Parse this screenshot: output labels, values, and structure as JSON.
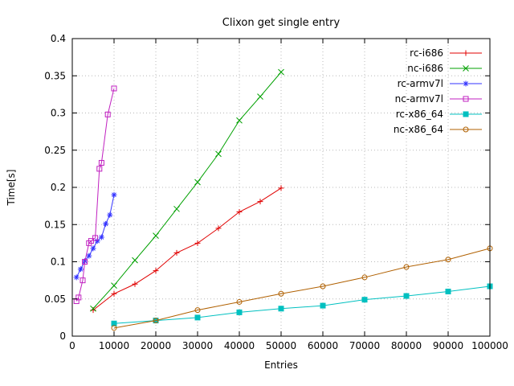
{
  "colors": {
    "background": "#ffffff",
    "grid": "#b8b8b8",
    "axis": "#000000"
  },
  "chart_data": {
    "type": "line",
    "title": "Clixon get single entry",
    "xlabel": "Entries",
    "ylabel": "Time[s]",
    "xlim": [
      0,
      100000
    ],
    "ylim": [
      0,
      0.4
    ],
    "grid": true,
    "legend_position": "top-right-inside",
    "xticks": [
      {
        "v": 0,
        "label": "0"
      },
      {
        "v": 10000,
        "label": "10000"
      },
      {
        "v": 20000,
        "label": "20000"
      },
      {
        "v": 30000,
        "label": "30000"
      },
      {
        "v": 40000,
        "label": "40000"
      },
      {
        "v": 50000,
        "label": "50000"
      },
      {
        "v": 60000,
        "label": "60000"
      },
      {
        "v": 70000,
        "label": "70000"
      },
      {
        "v": 80000,
        "label": "80000"
      },
      {
        "v": 90000,
        "label": "90000"
      },
      {
        "v": 100000,
        "label": "100000"
      }
    ],
    "yticks": [
      {
        "v": 0,
        "label": "0"
      },
      {
        "v": 0.05,
        "label": "0.05"
      },
      {
        "v": 0.1,
        "label": "0.1"
      },
      {
        "v": 0.15,
        "label": "0.15"
      },
      {
        "v": 0.2,
        "label": "0.2"
      },
      {
        "v": 0.25,
        "label": "0.25"
      },
      {
        "v": 0.3,
        "label": "0.3"
      },
      {
        "v": 0.35,
        "label": "0.35"
      },
      {
        "v": 0.4,
        "label": "0.4"
      }
    ],
    "series": [
      {
        "name": "rc-i686",
        "color": "#e00000",
        "marker": "plus",
        "points": [
          [
            5000,
            0.035
          ],
          [
            10000,
            0.057
          ],
          [
            15000,
            0.07
          ],
          [
            20000,
            0.088
          ],
          [
            25000,
            0.112
          ],
          [
            30000,
            0.125
          ],
          [
            35000,
            0.145
          ],
          [
            40000,
            0.167
          ],
          [
            45000,
            0.181
          ],
          [
            50000,
            0.199
          ]
        ]
      },
      {
        "name": "nc-i686",
        "color": "#00a000",
        "marker": "cross",
        "points": [
          [
            5000,
            0.037
          ],
          [
            10000,
            0.068
          ],
          [
            15000,
            0.102
          ],
          [
            20000,
            0.135
          ],
          [
            25000,
            0.171
          ],
          [
            30000,
            0.207
          ],
          [
            35000,
            0.245
          ],
          [
            40000,
            0.29
          ],
          [
            45000,
            0.322
          ],
          [
            50000,
            0.355
          ]
        ]
      },
      {
        "name": "rc-armv7l",
        "color": "#3333ff",
        "marker": "asterisk",
        "points": [
          [
            1000,
            0.079
          ],
          [
            2000,
            0.09
          ],
          [
            3000,
            0.101
          ],
          [
            4000,
            0.108
          ],
          [
            5000,
            0.118
          ],
          [
            6000,
            0.128
          ],
          [
            7000,
            0.133
          ],
          [
            8000,
            0.151
          ],
          [
            9000,
            0.163
          ],
          [
            10000,
            0.19
          ]
        ]
      },
      {
        "name": "nc-armv7l",
        "color": "#c020c0",
        "marker": "square-open",
        "points": [
          [
            1000,
            0.047
          ],
          [
            1500,
            0.052
          ],
          [
            2500,
            0.075
          ],
          [
            3000,
            0.1
          ],
          [
            4000,
            0.125
          ],
          [
            4500,
            0.128
          ],
          [
            5500,
            0.132
          ],
          [
            6500,
            0.225
          ],
          [
            7000,
            0.233
          ],
          [
            8500,
            0.298
          ],
          [
            10000,
            0.333
          ]
        ]
      },
      {
        "name": "rc-x86_64",
        "color": "#00c0c0",
        "marker": "square-filled",
        "points": [
          [
            10000,
            0.017
          ],
          [
            20000,
            0.021
          ],
          [
            30000,
            0.025
          ],
          [
            40000,
            0.032
          ],
          [
            50000,
            0.037
          ],
          [
            60000,
            0.041
          ],
          [
            70000,
            0.049
          ],
          [
            80000,
            0.054
          ],
          [
            90000,
            0.06
          ],
          [
            100000,
            0.067
          ]
        ]
      },
      {
        "name": "nc-x86_64",
        "color": "#b06000",
        "marker": "circle-open",
        "points": [
          [
            10000,
            0.011
          ],
          [
            20000,
            0.021
          ],
          [
            30000,
            0.035
          ],
          [
            40000,
            0.046
          ],
          [
            50000,
            0.057
          ],
          [
            60000,
            0.067
          ],
          [
            70000,
            0.079
          ],
          [
            80000,
            0.093
          ],
          [
            90000,
            0.103
          ],
          [
            100000,
            0.118
          ]
        ]
      }
    ]
  }
}
